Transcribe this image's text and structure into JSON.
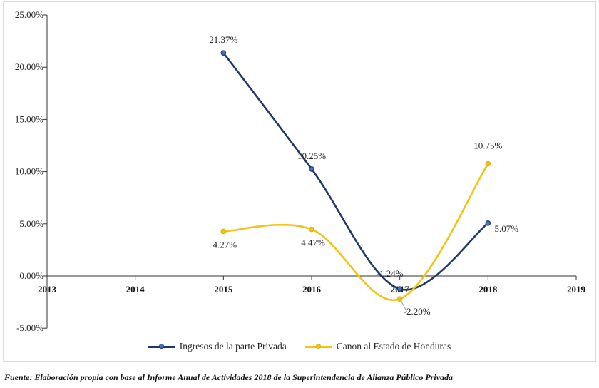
{
  "chart_data": {
    "type": "line",
    "x": [
      2013,
      2014,
      2015,
      2016,
      2017,
      2018,
      2019
    ],
    "xtick_labels": [
      "2013",
      "2014",
      "2015",
      "2016",
      "2017",
      "2018",
      "2019"
    ],
    "yticks": [
      -5,
      0,
      5,
      10,
      15,
      20,
      25
    ],
    "ytick_labels": [
      "-5.00%",
      "0.00%",
      "5.00%",
      "10.00%",
      "15.00%",
      "20.00%",
      "25.00%"
    ],
    "ylim": [
      -5,
      25
    ],
    "grid": false,
    "legend_position": "bottom",
    "series": [
      {
        "name": "Ingresos de la parte Privada",
        "color": "#1f3864",
        "x": [
          2015,
          2016,
          2017,
          2018
        ],
        "values": [
          21.37,
          10.25,
          -1.24,
          5.07
        ],
        "labels": [
          "21.37%",
          "10.25%",
          "-1.24%",
          "5.07%"
        ]
      },
      {
        "name": "Canon al Estado de Honduras",
        "color": "#f2c414",
        "x": [
          2015,
          2016,
          2017,
          2018
        ],
        "values": [
          4.27,
          4.47,
          -2.2,
          10.75
        ],
        "labels": [
          "4.27%",
          "4.47%",
          "-2.20%",
          "10.75%"
        ]
      }
    ]
  },
  "legend": [
    {
      "label": "Ingresos de la parte Privada",
      "color": "#1f3864"
    },
    {
      "label": "Canon al Estado de Honduras",
      "color": "#f2c414"
    }
  ],
  "source": "Fuente: Elaboración propia con base al Informe Anual de Actividades 2018 de la Superintendencia de Alianza Público Privada"
}
